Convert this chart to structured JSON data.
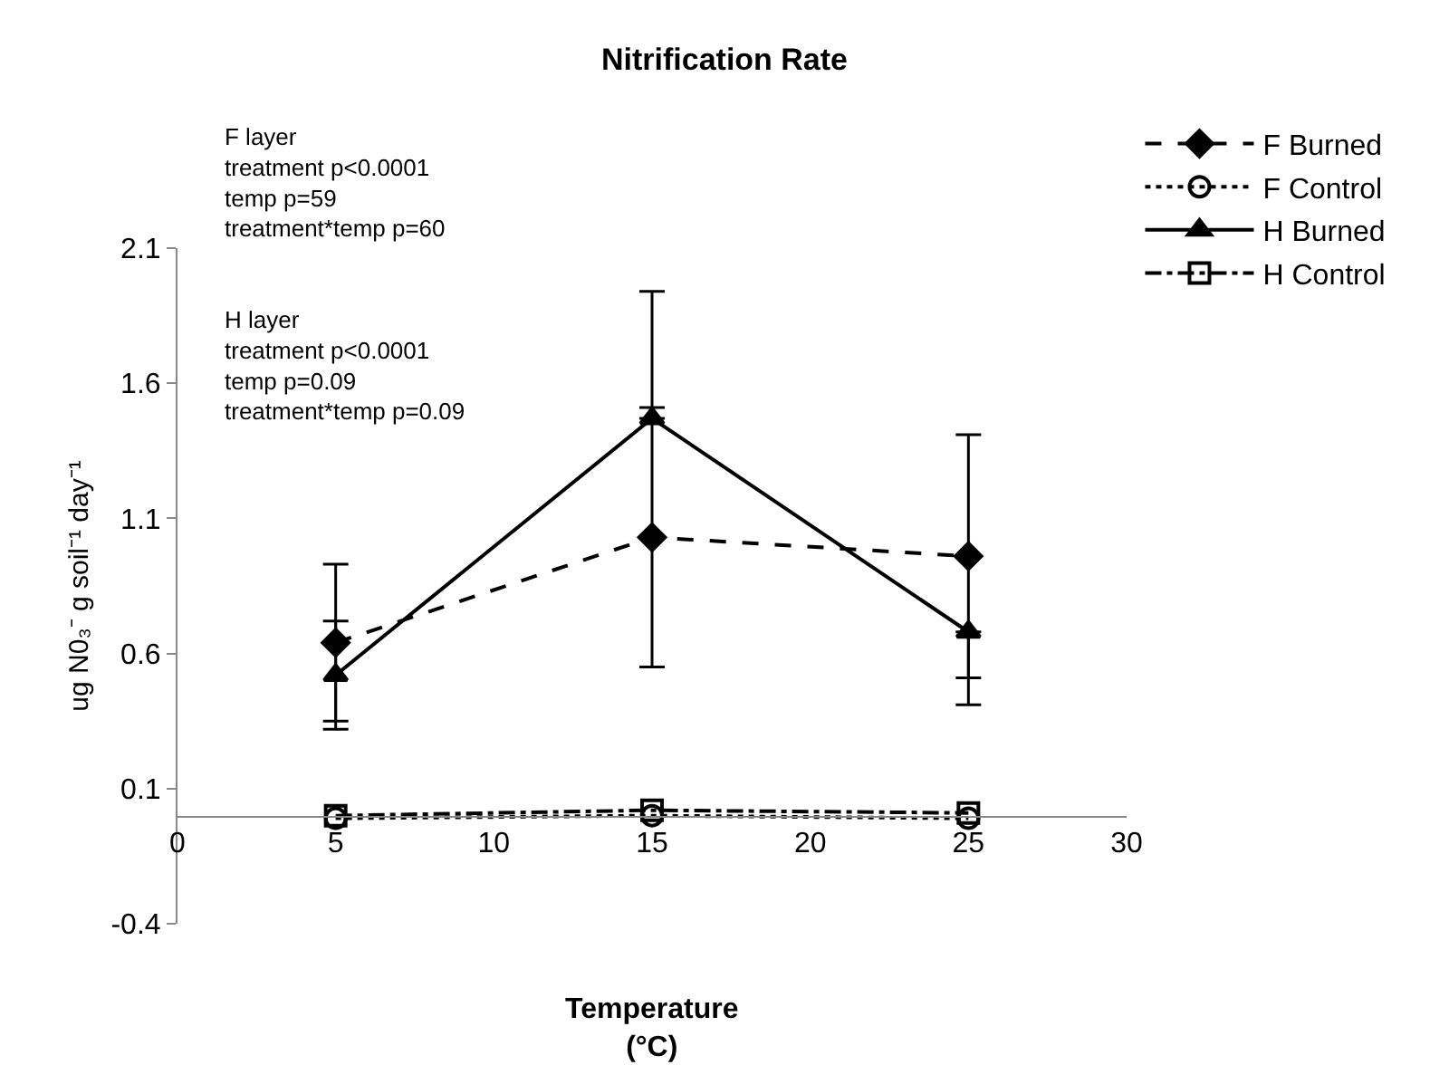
{
  "chart_data": {
    "type": "line",
    "title": "Nitrification Rate",
    "xlabel": "Temperature\n(°C)",
    "ylabel": "ug N0₃⁻ g soil⁻¹ day⁻¹",
    "x": [
      5,
      15,
      25
    ],
    "series": [
      {
        "name": "F Burned",
        "color": "#000000",
        "values": [
          0.64,
          1.03,
          0.96
        ],
        "errors": [
          0.29,
          0.48,
          0.45
        ],
        "marker": "diamond",
        "line_style": "dashed"
      },
      {
        "name": "F Control",
        "color": "#000000",
        "values": [
          -0.01,
          0.0,
          -0.01
        ],
        "marker": "circle-open",
        "line_style": "dotted"
      },
      {
        "name": "H Burned",
        "color": "#000000",
        "values": [
          0.52,
          1.47,
          0.68
        ],
        "errors": [
          0.2,
          [
            1.47,
            1.94
          ],
          [
            0.41,
            0.68
          ]
        ],
        "marker": "triangle",
        "line_style": "solid"
      },
      {
        "name": "H Control",
        "color": "#000000",
        "values": [
          0.0,
          0.02,
          0.01
        ],
        "marker": "square-open",
        "line_style": "dashdot"
      }
    ],
    "xlim": [
      0,
      30
    ],
    "xticks": [
      0,
      5,
      10,
      15,
      20,
      25,
      30
    ],
    "ylim": [
      -0.4,
      2.1
    ],
    "yticks": [
      -0.4,
      0.1,
      0.6,
      1.1,
      1.6,
      2.1
    ],
    "legend": "top right",
    "annotations": [
      "F layer\ntreatment p<0.0001\ntemp p=59\ntreatment*temp p=60",
      "H layer\ntreatment p<0.0001\ntemp p=0.09\ntreatment*temp p=0.09"
    ]
  }
}
